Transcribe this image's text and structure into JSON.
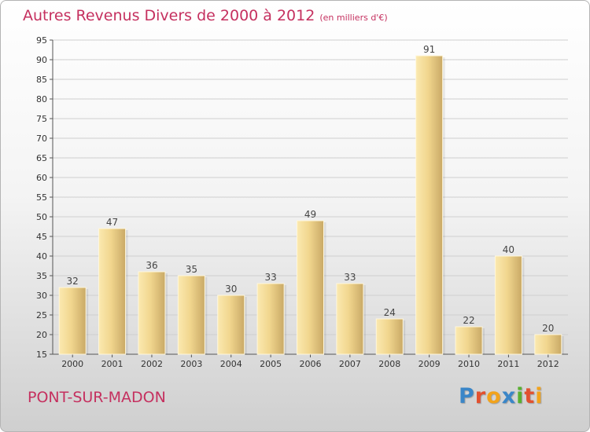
{
  "title": "Autres Revenus Divers de 2000 à 2012",
  "unit_note": "(en milliers d'€)",
  "commune": "PONT-SUR-MADON",
  "logo": {
    "letters": [
      "P",
      "r",
      "o",
      "x",
      "i",
      "t",
      "i"
    ],
    "colors": [
      "#3a86c8",
      "#e2512f",
      "#f2a31b",
      "#3a86c8",
      "#58b030",
      "#e2512f",
      "#f2a31b"
    ]
  },
  "colors": {
    "accent": "#c5305f",
    "bar_light": "#f4dc98",
    "bar_dark": "#c8a664",
    "grid": "#cccccc"
  },
  "chart_data": {
    "type": "bar",
    "title": "Autres Revenus Divers de 2000 à 2012",
    "categories": [
      "2000",
      "2001",
      "2002",
      "2003",
      "2004",
      "2005",
      "2006",
      "2007",
      "2008",
      "2009",
      "2010",
      "2011",
      "2012"
    ],
    "values": [
      32,
      47,
      36,
      35,
      30,
      33,
      49,
      33,
      24,
      91,
      22,
      40,
      20
    ],
    "ylim": [
      15,
      95
    ],
    "yticks": [
      15,
      20,
      25,
      30,
      35,
      40,
      45,
      50,
      55,
      60,
      65,
      70,
      75,
      80,
      85,
      90,
      95
    ],
    "grid": true,
    "data_labels": true
  }
}
